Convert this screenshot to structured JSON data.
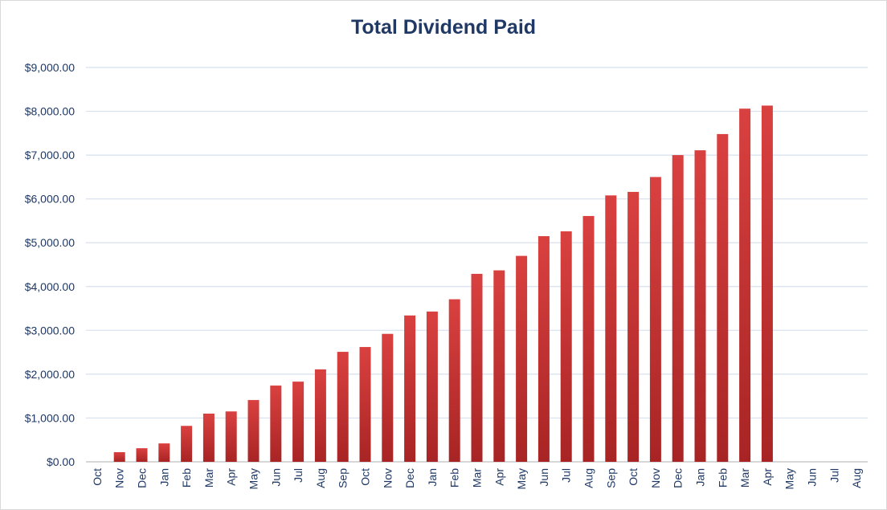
{
  "chart_data": {
    "type": "bar",
    "title": "Total Dividend Paid",
    "xlabel": "",
    "ylabel": "",
    "ylim": [
      0,
      9000
    ],
    "yticks": [
      "$0.00",
      "$1,000.00",
      "$2,000.00",
      "$3,000.00",
      "$4,000.00",
      "$5,000.00",
      "$6,000.00",
      "$7,000.00",
      "$8,000.00",
      "$9,000.00"
    ],
    "grid": true,
    "legend": "none",
    "bar_color": "#c0302f",
    "categories": [
      "Oct",
      "Nov",
      "Dec",
      "Jan",
      "Feb",
      "Mar",
      "Apr",
      "May",
      "Jun",
      "Jul",
      "Aug",
      "Sep",
      "Oct",
      "Nov",
      "Dec",
      "Jan",
      "Feb",
      "Mar",
      "Apr",
      "May",
      "Jun",
      "Jul",
      "Aug",
      "Sep",
      "Oct",
      "Nov",
      "Dec",
      "Jan",
      "Feb",
      "Mar",
      "Apr",
      "May",
      "Jun",
      "Jul",
      "Aug"
    ],
    "values": [
      0,
      220,
      310,
      420,
      820,
      1100,
      1150,
      1410,
      1740,
      1830,
      2110,
      2510,
      2620,
      2920,
      3340,
      3430,
      3710,
      4290,
      4370,
      4700,
      5150,
      5260,
      5610,
      6080,
      6160,
      6500,
      7000,
      7110,
      7480,
      8060,
      8130,
      0,
      0,
      0,
      0
    ]
  }
}
